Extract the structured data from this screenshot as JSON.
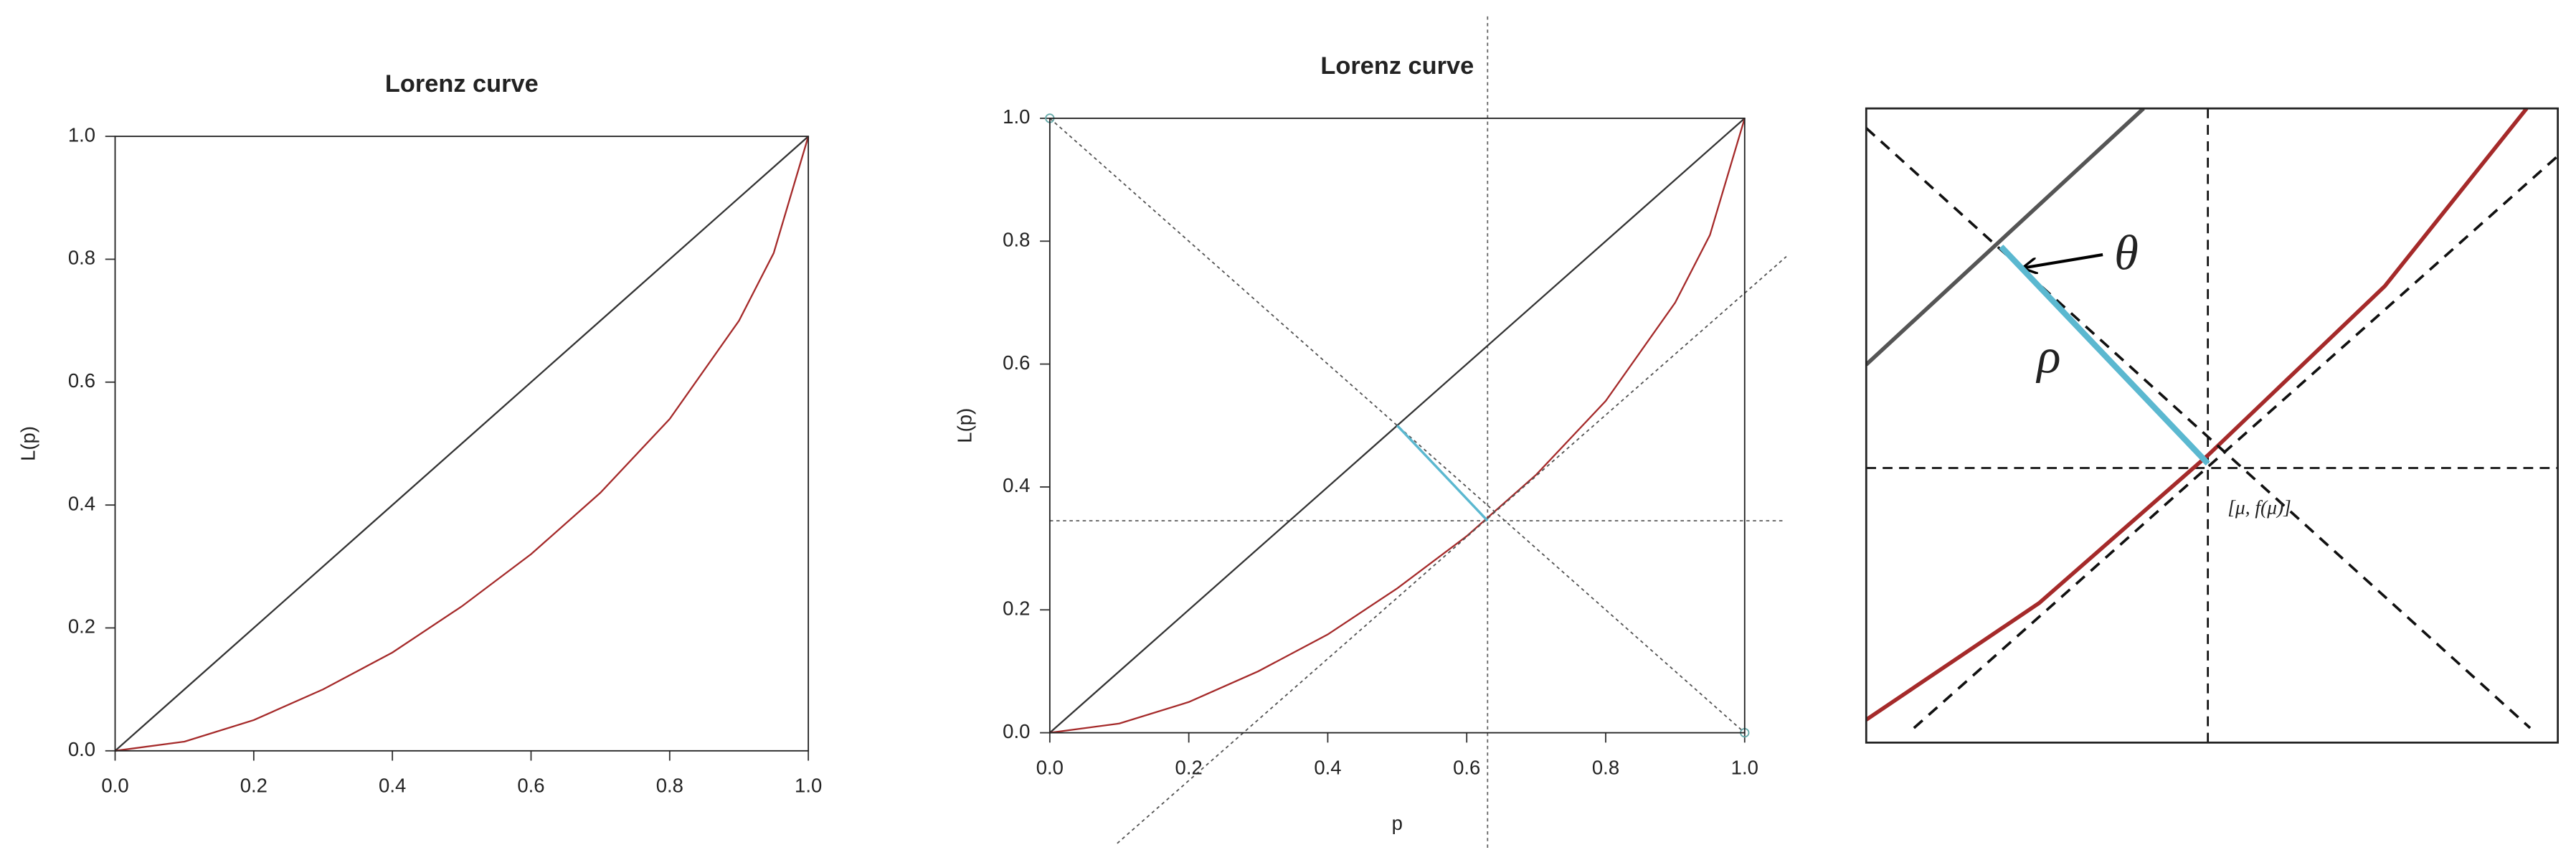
{
  "chart_data": [
    {
      "type": "line",
      "title": "Lorenz curve",
      "ylabel": "L(p)",
      "xlim": [
        0,
        1
      ],
      "ylim": [
        0,
        1
      ],
      "xticks": [
        {
          "value": 0,
          "label": "0.0"
        },
        {
          "value": 0.2,
          "label": "0.2"
        },
        {
          "value": 0.4,
          "label": "0.4"
        },
        {
          "value": 0.6,
          "label": "0.6"
        },
        {
          "value": 0.8,
          "label": "0.8"
        },
        {
          "value": 1,
          "label": "1.0"
        }
      ],
      "yticks": [
        {
          "value": 0,
          "label": "0.0"
        },
        {
          "value": 0.2,
          "label": "0.2"
        },
        {
          "value": 0.4,
          "label": "0.4"
        },
        {
          "value": 0.6,
          "label": "0.6"
        },
        {
          "value": 0.8,
          "label": "0.8"
        },
        {
          "value": 1,
          "label": "1.0"
        }
      ],
      "series": [
        {
          "color": "#333333",
          "x": [
            0,
            1
          ],
          "values": [
            0,
            1
          ]
        },
        {
          "color": "#a52a2a",
          "x": [
            0,
            0.1,
            0.2,
            0.3,
            0.4,
            0.5,
            0.6,
            0.7,
            0.8,
            0.9,
            0.95,
            1
          ],
          "values": [
            0,
            0.015,
            0.05,
            0.1,
            0.16,
            0.235,
            0.32,
            0.42,
            0.54,
            0.7,
            0.81,
            1
          ]
        }
      ]
    },
    {
      "type": "line",
      "title": "Lorenz curve",
      "xlabel": "p",
      "ylabel": "L(p)",
      "xlim": [
        0,
        1
      ],
      "ylim": [
        0,
        1
      ],
      "xticks": [
        {
          "value": 0,
          "label": "0.0"
        },
        {
          "value": 0.2,
          "label": "0.2"
        },
        {
          "value": 0.4,
          "label": "0.4"
        },
        {
          "value": 0.6,
          "label": "0.6"
        },
        {
          "value": 0.8,
          "label": "0.8"
        },
        {
          "value": 1,
          "label": "1.0"
        }
      ],
      "yticks": [
        {
          "value": 0,
          "label": "0.0"
        },
        {
          "value": 0.2,
          "label": "0.2"
        },
        {
          "value": 0.4,
          "label": "0.4"
        },
        {
          "value": 0.6,
          "label": "0.6"
        },
        {
          "value": 0.8,
          "label": "0.8"
        },
        {
          "value": 1,
          "label": "1.0"
        }
      ],
      "vlines": [
        0.63
      ],
      "hlines": [
        0.345
      ],
      "series": [
        {
          "color": "#333333",
          "x": [
            0,
            1
          ],
          "values": [
            0,
            1
          ]
        },
        {
          "color": "#a52a2a",
          "x": [
            0,
            0.1,
            0.2,
            0.3,
            0.4,
            0.5,
            0.6,
            0.7,
            0.8,
            0.9,
            0.95,
            1
          ],
          "values": [
            0,
            0.015,
            0.05,
            0.1,
            0.16,
            0.235,
            0.32,
            0.42,
            0.54,
            0.7,
            0.81,
            1
          ]
        },
        {
          "color": "#555555",
          "dash": true,
          "markers": true,
          "x": [
            0,
            1
          ],
          "values": [
            1,
            0
          ]
        },
        {
          "color": "#555555",
          "dash": true,
          "x": [
            0.097,
            1.06
          ],
          "values": [
            -0.18,
            0.775
          ]
        },
        {
          "color": "#5bb8d0",
          "x": [
            0.5,
            0.63
          ],
          "values": [
            0.5,
            0.345
          ]
        }
      ]
    },
    {
      "type": "line",
      "xlim": [
        0,
        1
      ],
      "ylim": [
        0,
        1
      ],
      "vlines": [
        0.494
      ],
      "hlines": [
        0.433
      ],
      "annotations": [
        "θ",
        "ρ",
        "[μ, f(μ)]"
      ],
      "series": [
        {
          "color": "#555555",
          "x": [
            0,
            0.401
          ],
          "values": [
            0.596,
            1
          ]
        },
        {
          "color": "#a52a2a",
          "x": [
            0,
            0.25,
            0.494,
            0.75,
            0.955
          ],
          "values": [
            0.036,
            0.22,
            0.453,
            0.72,
            1
          ]
        },
        {
          "color": "#111111",
          "dash": true,
          "x": [
            0,
            0.96
          ],
          "values": [
            0.969,
            0.023
          ]
        },
        {
          "color": "#111111",
          "dash": true,
          "x": [
            0.069,
            1
          ],
          "values": [
            0.023,
            0.925
          ]
        },
        {
          "color": "#5bb8d0",
          "x": [
            0.195,
            0.494
          ],
          "values": [
            0.782,
            0.44
          ]
        }
      ]
    }
  ]
}
